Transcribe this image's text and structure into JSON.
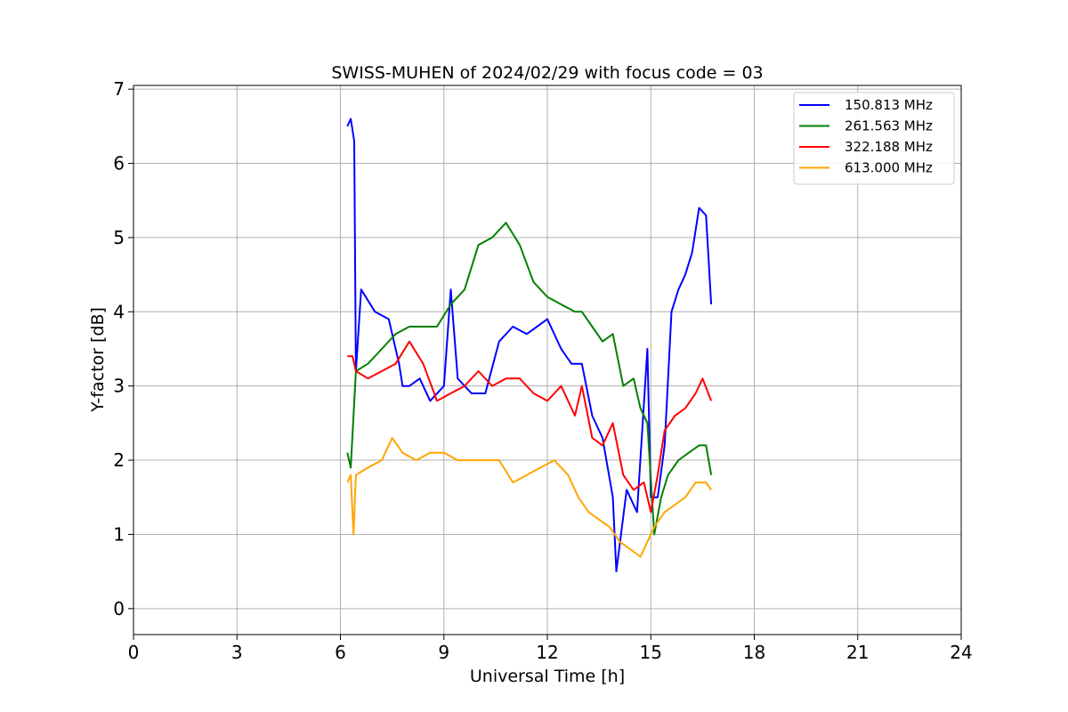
{
  "chart_data": {
    "type": "line",
    "title": "SWISS-MUHEN of 2024/02/29 with focus code = 03",
    "xlabel": "Universal Time [h]",
    "ylabel": "Y-factor [dB]",
    "xlim": [
      0,
      24
    ],
    "ylim": [
      -0.35,
      7.05
    ],
    "xticks": [
      "0",
      "3",
      "6",
      "9",
      "12",
      "15",
      "18",
      "21",
      "24"
    ],
    "xtick_values": [
      0,
      3,
      6,
      9,
      12,
      15,
      18,
      21,
      24
    ],
    "yticks": [
      "0",
      "1",
      "2",
      "3",
      "4",
      "5",
      "6",
      "7"
    ],
    "ytick_values": [
      0,
      1,
      2,
      3,
      4,
      5,
      6,
      7
    ],
    "grid": true,
    "legend_position": "top-right",
    "series": [
      {
        "name": "150.813 MHz",
        "color": "#0000ff",
        "x": [
          6.2,
          6.3,
          6.4,
          6.45,
          6.6,
          7.0,
          7.4,
          7.7,
          7.8,
          8.0,
          8.3,
          8.6,
          9.0,
          9.2,
          9.4,
          9.8,
          10.2,
          10.6,
          11.0,
          11.4,
          11.7,
          12.0,
          12.4,
          12.7,
          13.0,
          13.3,
          13.6,
          13.9,
          14.0,
          14.3,
          14.6,
          14.9,
          15.0,
          15.2,
          15.4,
          15.6,
          15.8,
          16.0,
          16.2,
          16.4,
          16.6,
          16.75
        ],
        "y": [
          6.5,
          6.6,
          6.3,
          3.2,
          4.3,
          4.0,
          3.9,
          3.3,
          3.0,
          3.0,
          3.1,
          2.8,
          3.0,
          4.3,
          3.1,
          2.9,
          2.9,
          3.6,
          3.8,
          3.7,
          3.8,
          3.9,
          3.5,
          3.3,
          3.3,
          2.6,
          2.3,
          1.5,
          0.5,
          1.6,
          1.3,
          3.5,
          1.5,
          1.5,
          2.2,
          4.0,
          4.3,
          4.5,
          4.8,
          5.4,
          5.3,
          4.1
        ]
      },
      {
        "name": "261.563 MHz",
        "color": "#008000",
        "x": [
          6.2,
          6.3,
          6.45,
          6.8,
          7.2,
          7.6,
          8.0,
          8.4,
          8.8,
          9.2,
          9.6,
          10.0,
          10.4,
          10.8,
          11.2,
          11.6,
          12.0,
          12.4,
          12.8,
          13.0,
          13.3,
          13.6,
          13.9,
          14.2,
          14.5,
          14.7,
          14.9,
          15.1,
          15.3,
          15.5,
          15.8,
          16.1,
          16.4,
          16.6,
          16.75
        ],
        "y": [
          2.1,
          1.9,
          3.2,
          3.3,
          3.5,
          3.7,
          3.8,
          3.8,
          3.8,
          4.1,
          4.3,
          4.9,
          5.0,
          5.2,
          4.9,
          4.4,
          4.2,
          4.1,
          4.0,
          4.0,
          3.8,
          3.6,
          3.7,
          3.0,
          3.1,
          2.7,
          2.5,
          1.0,
          1.5,
          1.8,
          2.0,
          2.1,
          2.2,
          2.2,
          1.8
        ]
      },
      {
        "name": "322.188 MHz",
        "color": "#ff0000",
        "x": [
          6.2,
          6.35,
          6.45,
          6.8,
          7.2,
          7.6,
          8.0,
          8.4,
          8.8,
          9.2,
          9.6,
          10.0,
          10.4,
          10.8,
          11.2,
          11.6,
          12.0,
          12.4,
          12.8,
          13.0,
          13.3,
          13.6,
          13.9,
          14.2,
          14.5,
          14.8,
          15.0,
          15.2,
          15.4,
          15.7,
          16.0,
          16.3,
          16.5,
          16.75
        ],
        "y": [
          3.4,
          3.4,
          3.2,
          3.1,
          3.2,
          3.3,
          3.6,
          3.3,
          2.8,
          2.9,
          3.0,
          3.2,
          3.0,
          3.1,
          3.1,
          2.9,
          2.8,
          3.0,
          2.6,
          3.0,
          2.3,
          2.2,
          2.5,
          1.8,
          1.6,
          1.7,
          1.3,
          1.8,
          2.4,
          2.6,
          2.7,
          2.9,
          3.1,
          2.8
        ]
      },
      {
        "name": "613.000 MHz",
        "color": "#ffa500",
        "x": [
          6.2,
          6.3,
          6.38,
          6.45,
          6.8,
          7.2,
          7.5,
          7.8,
          8.2,
          8.6,
          9.0,
          9.4,
          9.8,
          10.2,
          10.6,
          11.0,
          11.4,
          11.8,
          12.2,
          12.6,
          12.9,
          13.2,
          13.5,
          13.8,
          14.1,
          14.4,
          14.7,
          14.9,
          15.1,
          15.4,
          15.7,
          16.0,
          16.3,
          16.6,
          16.75
        ],
        "y": [
          1.7,
          1.8,
          1.0,
          1.8,
          1.9,
          2.0,
          2.3,
          2.1,
          2.0,
          2.1,
          2.1,
          2.0,
          2.0,
          2.0,
          2.0,
          1.7,
          1.8,
          1.9,
          2.0,
          1.8,
          1.5,
          1.3,
          1.2,
          1.1,
          0.9,
          0.8,
          0.7,
          0.9,
          1.1,
          1.3,
          1.4,
          1.5,
          1.7,
          1.7,
          1.6
        ]
      }
    ]
  }
}
